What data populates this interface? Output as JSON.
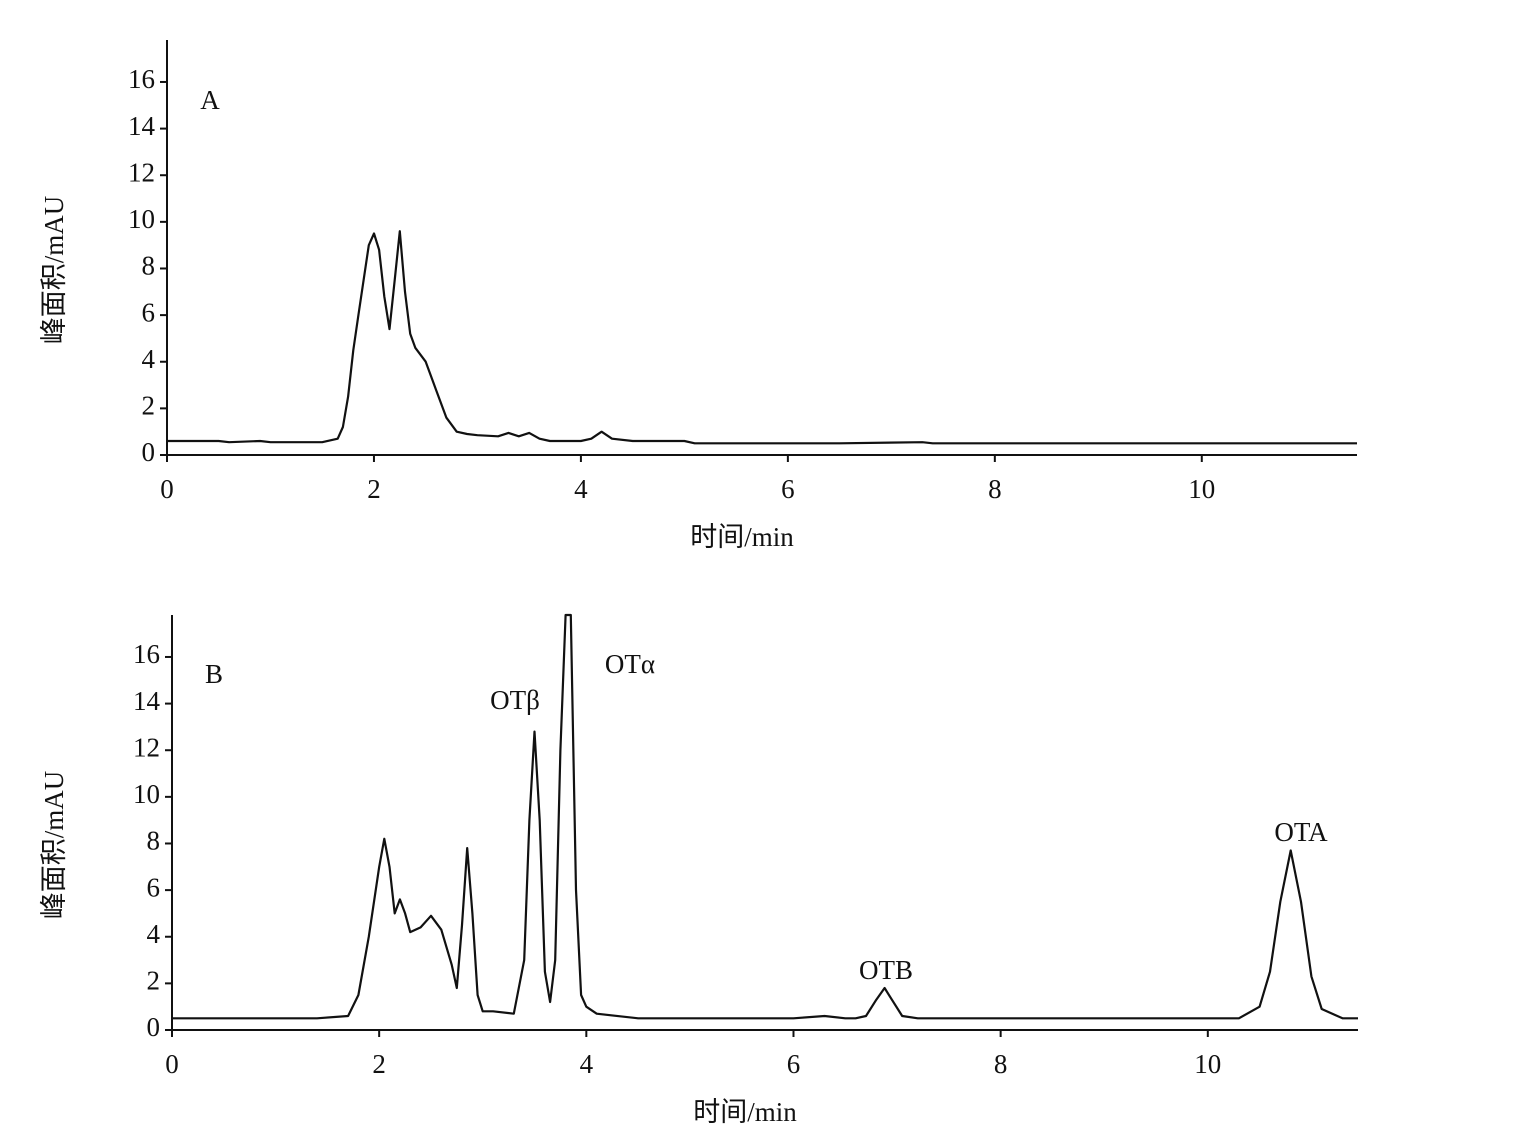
{
  "chart_data": [
    {
      "type": "line",
      "label": "A",
      "xlabel": "时间/min",
      "ylabel": "峰面积/mAU",
      "color": "#111111",
      "xlim": [
        0,
        11.5
      ],
      "ylim": [
        0,
        17.8
      ],
      "xticks": [
        0,
        2,
        4,
        6,
        8,
        10
      ],
      "yticks": [
        0,
        2,
        4,
        6,
        8,
        10,
        12,
        14,
        16
      ],
      "x": [
        0,
        0.5,
        0.6,
        0.9,
        1.0,
        1.5,
        1.65,
        1.7,
        1.75,
        1.8,
        1.85,
        1.9,
        1.95,
        2.0,
        2.05,
        2.1,
        2.15,
        2.2,
        2.25,
        2.3,
        2.35,
        2.4,
        2.5,
        2.6,
        2.7,
        2.8,
        2.9,
        3.0,
        3.2,
        3.3,
        3.4,
        3.5,
        3.6,
        3.7,
        4.0,
        4.1,
        4.2,
        4.3,
        4.5,
        5.0,
        5.1,
        6.5,
        7.3,
        7.4,
        11.5
      ],
      "values": [
        0.6,
        0.6,
        0.55,
        0.6,
        0.55,
        0.55,
        0.7,
        1.2,
        2.5,
        4.5,
        6.0,
        7.5,
        9.0,
        9.5,
        8.8,
        6.8,
        5.4,
        7.5,
        9.6,
        7.0,
        5.2,
        4.6,
        4.0,
        2.8,
        1.6,
        1.0,
        0.9,
        0.85,
        0.8,
        0.95,
        0.8,
        0.95,
        0.7,
        0.6,
        0.6,
        0.7,
        1.0,
        0.7,
        0.6,
        0.6,
        0.5,
        0.5,
        0.55,
        0.5,
        0.5
      ]
    },
    {
      "type": "line",
      "label": "B",
      "xlabel": "时间/min",
      "ylabel": "峰面积/mAU",
      "color": "#111111",
      "xlim": [
        0,
        11.45
      ],
      "ylim": [
        0,
        17.8
      ],
      "xticks": [
        0,
        2,
        4,
        6,
        8,
        10
      ],
      "yticks": [
        0,
        2,
        4,
        6,
        8,
        10,
        12,
        14,
        16
      ],
      "annotations": [
        "OTβ",
        "OTα",
        "OTB",
        "OTA"
      ],
      "x": [
        0,
        1.4,
        1.7,
        1.8,
        1.9,
        2.0,
        2.05,
        2.1,
        2.15,
        2.2,
        2.25,
        2.3,
        2.4,
        2.5,
        2.6,
        2.7,
        2.75,
        2.8,
        2.85,
        2.9,
        2.95,
        3.0,
        3.1,
        3.3,
        3.4,
        3.45,
        3.5,
        3.55,
        3.6,
        3.65,
        3.7,
        3.75,
        3.8,
        3.85,
        3.9,
        3.95,
        4.0,
        4.1,
        4.5,
        6.0,
        6.3,
        6.5,
        6.6,
        6.7,
        6.8,
        6.88,
        6.95,
        7.05,
        7.2,
        8.0,
        10.3,
        10.5,
        10.6,
        10.7,
        10.8,
        10.9,
        11.0,
        11.1,
        11.3,
        11.45
      ],
      "values": [
        0.5,
        0.5,
        0.6,
        1.5,
        4.0,
        7.0,
        8.2,
        7.0,
        5.0,
        5.6,
        5.0,
        4.2,
        4.4,
        4.9,
        4.3,
        2.8,
        1.8,
        4.5,
        7.8,
        5.0,
        1.5,
        0.8,
        0.8,
        0.7,
        3.0,
        9.0,
        12.8,
        9.0,
        2.5,
        1.2,
        3.0,
        12.0,
        17.8,
        17.8,
        6.0,
        1.5,
        1.0,
        0.7,
        0.5,
        0.5,
        0.6,
        0.5,
        0.5,
        0.6,
        1.3,
        1.8,
        1.3,
        0.6,
        0.5,
        0.5,
        0.5,
        1.0,
        2.5,
        5.5,
        7.7,
        5.5,
        2.3,
        0.9,
        0.5,
        0.5
      ]
    }
  ]
}
